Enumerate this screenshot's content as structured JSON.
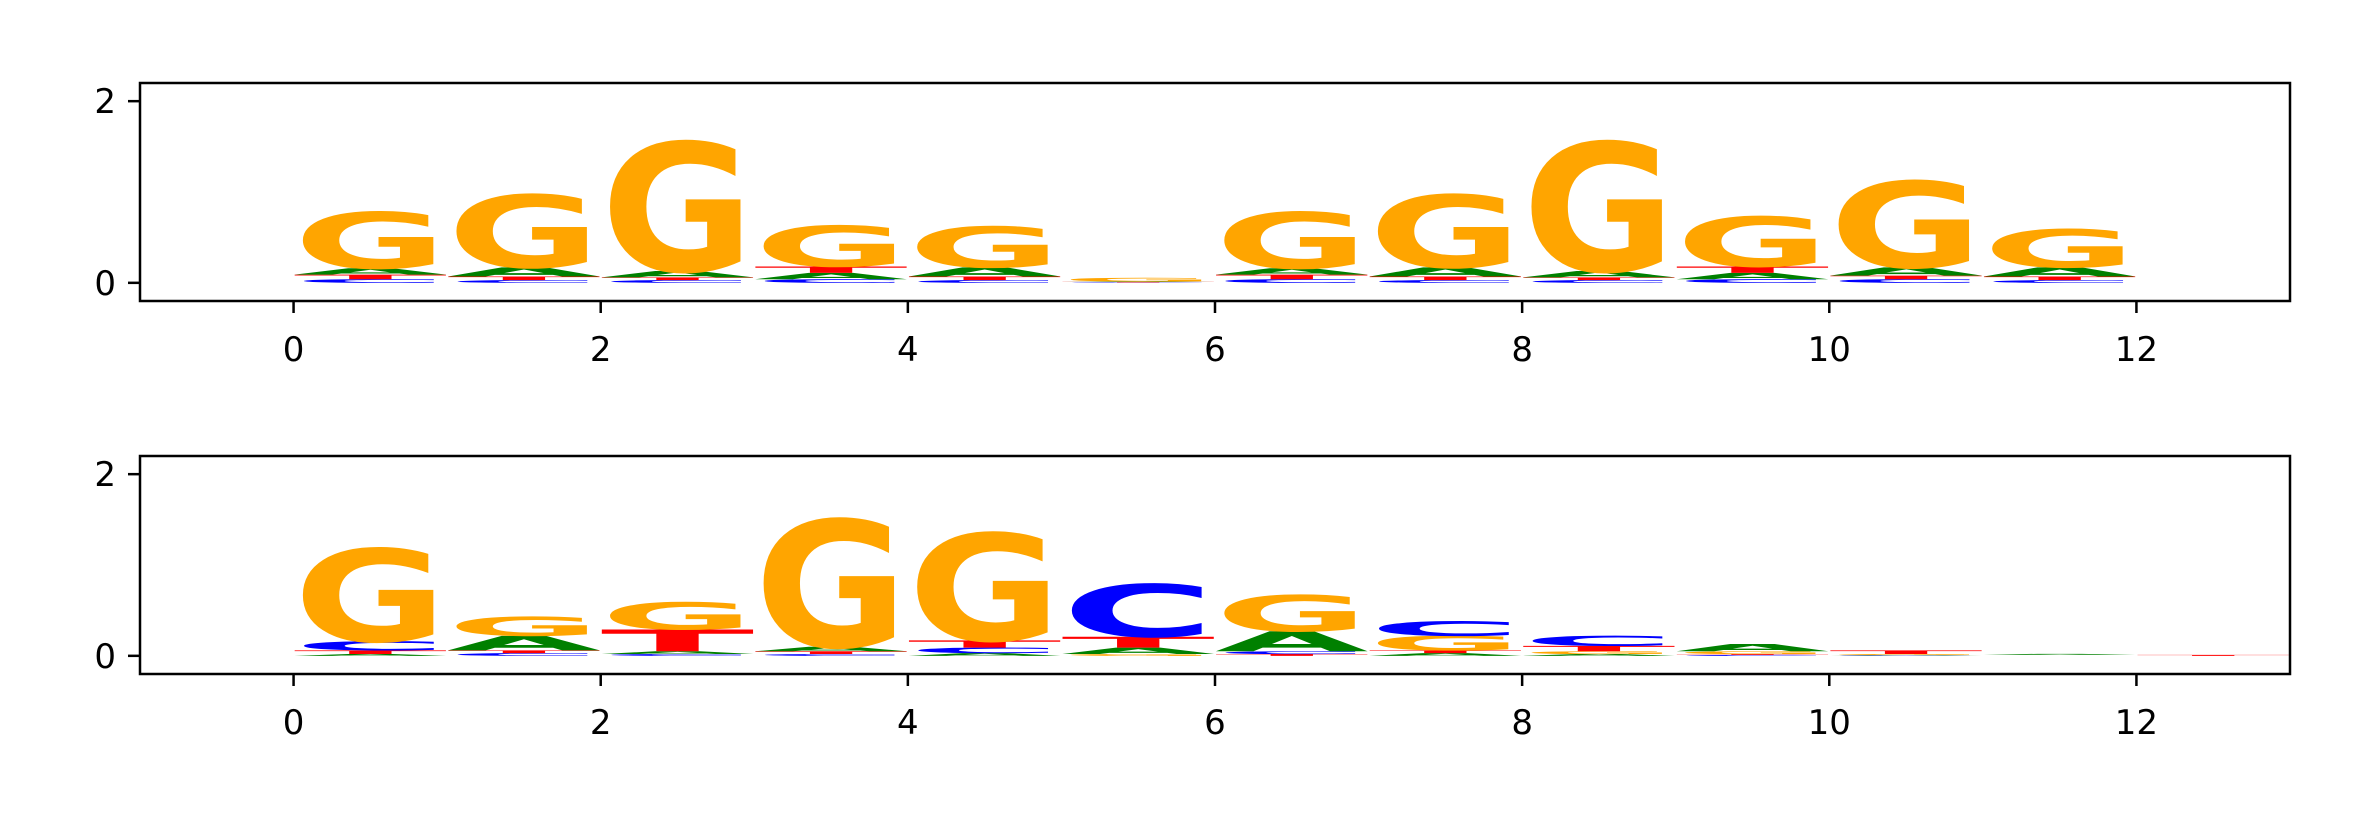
{
  "colors": {
    "A": "#008000",
    "C": "#0000ff",
    "G": "#ffa500",
    "T": "#ff0000",
    "axis": "#000000",
    "background": "#ffffff"
  },
  "chart_data": [
    {
      "type": "logo",
      "title": "",
      "xlabel": "",
      "ylabel": "",
      "xlim": [
        -1,
        13
      ],
      "ylim": [
        -0.2,
        2.2
      ],
      "xticks": [
        0,
        2,
        4,
        6,
        8,
        10,
        12
      ],
      "xtick_labels": [
        "0",
        "2",
        "4",
        "6",
        "8",
        "10",
        "12"
      ],
      "yticks": [
        0,
        2
      ],
      "ytick_labels": [
        "0",
        "2"
      ],
      "positions": [
        {
          "pos": 0,
          "letters": [
            {
              "l": "C",
              "h": 0.04
            },
            {
              "l": "T",
              "h": 0.05
            },
            {
              "l": "A",
              "h": 0.07
            },
            {
              "l": "G",
              "h": 0.62
            }
          ]
        },
        {
          "pos": 1,
          "letters": [
            {
              "l": "C",
              "h": 0.03
            },
            {
              "l": "T",
              "h": 0.04
            },
            {
              "l": "A",
              "h": 0.1
            },
            {
              "l": "G",
              "h": 0.8
            }
          ]
        },
        {
          "pos": 2,
          "letters": [
            {
              "l": "C",
              "h": 0.03
            },
            {
              "l": "T",
              "h": 0.03
            },
            {
              "l": "A",
              "h": 0.07
            },
            {
              "l": "G",
              "h": 1.42
            }
          ]
        },
        {
          "pos": 3,
          "letters": [
            {
              "l": "C",
              "h": 0.04
            },
            {
              "l": "A",
              "h": 0.07
            },
            {
              "l": "T",
              "h": 0.07
            },
            {
              "l": "G",
              "h": 0.45
            }
          ]
        },
        {
          "pos": 4,
          "letters": [
            {
              "l": "C",
              "h": 0.03
            },
            {
              "l": "T",
              "h": 0.04
            },
            {
              "l": "A",
              "h": 0.1
            },
            {
              "l": "G",
              "h": 0.45
            }
          ]
        },
        {
          "pos": 5,
          "letters": [
            {
              "l": "C",
              "h": 0.005
            },
            {
              "l": "T",
              "h": 0.005
            },
            {
              "l": "A",
              "h": 0.005
            },
            {
              "l": "G",
              "h": 0.04
            }
          ]
        },
        {
          "pos": 6,
          "letters": [
            {
              "l": "C",
              "h": 0.04
            },
            {
              "l": "T",
              "h": 0.05
            },
            {
              "l": "A",
              "h": 0.07
            },
            {
              "l": "G",
              "h": 0.62
            }
          ]
        },
        {
          "pos": 7,
          "letters": [
            {
              "l": "C",
              "h": 0.03
            },
            {
              "l": "T",
              "h": 0.04
            },
            {
              "l": "A",
              "h": 0.1
            },
            {
              "l": "G",
              "h": 0.8
            }
          ]
        },
        {
          "pos": 8,
          "letters": [
            {
              "l": "C",
              "h": 0.03
            },
            {
              "l": "T",
              "h": 0.03
            },
            {
              "l": "A",
              "h": 0.07
            },
            {
              "l": "G",
              "h": 1.42
            }
          ]
        },
        {
          "pos": 9,
          "letters": [
            {
              "l": "C",
              "h": 0.04
            },
            {
              "l": "A",
              "h": 0.07
            },
            {
              "l": "T",
              "h": 0.07
            },
            {
              "l": "G",
              "h": 0.55
            }
          ]
        },
        {
          "pos": 10,
          "letters": [
            {
              "l": "C",
              "h": 0.04
            },
            {
              "l": "T",
              "h": 0.04
            },
            {
              "l": "A",
              "h": 0.09
            },
            {
              "l": "G",
              "h": 0.95
            }
          ]
        },
        {
          "pos": 11,
          "letters": [
            {
              "l": "C",
              "h": 0.03
            },
            {
              "l": "T",
              "h": 0.04
            },
            {
              "l": "A",
              "h": 0.1
            },
            {
              "l": "G",
              "h": 0.42
            }
          ]
        }
      ]
    },
    {
      "type": "logo",
      "title": "",
      "xlabel": "",
      "ylabel": "",
      "xlim": [
        -1,
        13
      ],
      "ylim": [
        -0.2,
        2.2
      ],
      "xticks": [
        0,
        2,
        4,
        6,
        8,
        10,
        12
      ],
      "xtick_labels": [
        "0",
        "2",
        "4",
        "6",
        "8",
        "10",
        "12"
      ],
      "yticks": [
        0,
        2
      ],
      "ytick_labels": [
        "0",
        "2"
      ],
      "positions": [
        {
          "pos": 0,
          "letters": [
            {
              "l": "A",
              "h": 0.02
            },
            {
              "l": "T",
              "h": 0.04
            },
            {
              "l": "C",
              "h": 0.1
            },
            {
              "l": "G",
              "h": 1.02
            }
          ]
        },
        {
          "pos": 1,
          "letters": [
            {
              "l": "C",
              "h": 0.03
            },
            {
              "l": "T",
              "h": 0.03
            },
            {
              "l": "A",
              "h": 0.16
            },
            {
              "l": "G",
              "h": 0.21
            }
          ]
        },
        {
          "pos": 2,
          "letters": [
            {
              "l": "C",
              "h": 0.02
            },
            {
              "l": "A",
              "h": 0.03
            },
            {
              "l": "T",
              "h": 0.24
            },
            {
              "l": "G",
              "h": 0.3
            }
          ]
        },
        {
          "pos": 3,
          "letters": [
            {
              "l": "C",
              "h": 0.02
            },
            {
              "l": "T",
              "h": 0.03
            },
            {
              "l": "A",
              "h": 0.05
            },
            {
              "l": "G",
              "h": 1.4
            }
          ]
        },
        {
          "pos": 4,
          "letters": [
            {
              "l": "A",
              "h": 0.03
            },
            {
              "l": "C",
              "h": 0.06
            },
            {
              "l": "T",
              "h": 0.08
            },
            {
              "l": "G",
              "h": 1.18
            }
          ]
        },
        {
          "pos": 5,
          "letters": [
            {
              "l": "G",
              "h": 0.02
            },
            {
              "l": "A",
              "h": 0.07
            },
            {
              "l": "T",
              "h": 0.12
            },
            {
              "l": "C",
              "h": 0.58
            }
          ]
        },
        {
          "pos": 6,
          "letters": [
            {
              "l": "T",
              "h": 0.02
            },
            {
              "l": "C",
              "h": 0.03
            },
            {
              "l": "A",
              "h": 0.22
            },
            {
              "l": "G",
              "h": 0.4
            }
          ]
        },
        {
          "pos": 7,
          "letters": [
            {
              "l": "A",
              "h": 0.03
            },
            {
              "l": "T",
              "h": 0.03
            },
            {
              "l": "G",
              "h": 0.16
            },
            {
              "l": "C",
              "h": 0.16
            }
          ]
        },
        {
          "pos": 8,
          "letters": [
            {
              "l": "A",
              "h": 0.02
            },
            {
              "l": "G",
              "h": 0.03
            },
            {
              "l": "T",
              "h": 0.06
            },
            {
              "l": "C",
              "h": 0.11
            }
          ]
        },
        {
          "pos": 9,
          "letters": [
            {
              "l": "C",
              "h": 0.01
            },
            {
              "l": "T",
              "h": 0.01
            },
            {
              "l": "G",
              "h": 0.03
            },
            {
              "l": "A",
              "h": 0.08
            }
          ]
        },
        {
          "pos": 10,
          "letters": [
            {
              "l": "C",
              "h": 0.005
            },
            {
              "l": "A",
              "h": 0.005
            },
            {
              "l": "G",
              "h": 0.01
            },
            {
              "l": "T",
              "h": 0.04
            }
          ]
        },
        {
          "pos": 11,
          "letters": [
            {
              "l": "C",
              "h": 0.003
            },
            {
              "l": "T",
              "h": 0.003
            },
            {
              "l": "G",
              "h": 0.004
            },
            {
              "l": "A",
              "h": 0.012
            }
          ]
        },
        {
          "pos": 12,
          "letters": [
            {
              "l": "T",
              "h": 0.01
            }
          ]
        }
      ]
    }
  ]
}
